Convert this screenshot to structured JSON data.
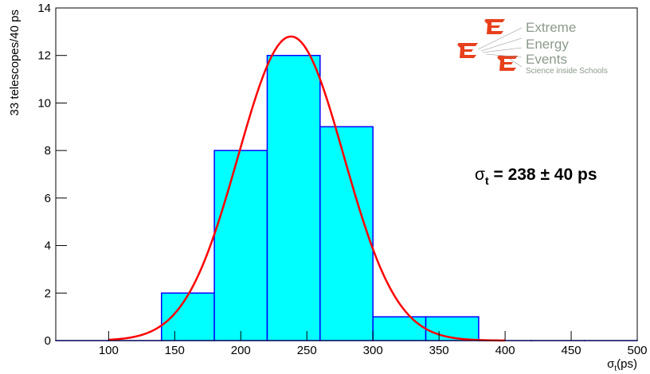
{
  "chart_data": {
    "type": "histogram",
    "bins": [
      60,
      100,
      140,
      180,
      220,
      260,
      300,
      340,
      380,
      420,
      460,
      500
    ],
    "values": [
      0,
      0,
      2,
      8,
      12,
      9,
      1,
      1,
      0,
      0,
      0
    ],
    "color": "#00ffff",
    "edge_color": "#0000ff",
    "xlim": [
      60,
      500
    ],
    "ylim": [
      0,
      14
    ],
    "xticks": [
      100,
      150,
      200,
      250,
      300,
      350,
      400,
      450,
      500
    ],
    "yticks": [
      0,
      2,
      4,
      6,
      8,
      10,
      12,
      14
    ],
    "xlabel": {
      "symbol": "σ",
      "subscript": "t",
      "text": "(ps)"
    },
    "ylabel": "33 telescopes/40 ps",
    "fit": {
      "type": "gaussian",
      "amplitude": 12.8,
      "mean": 238,
      "sigma": 40,
      "xrange": [
        100,
        400
      ],
      "color": "#ff0000"
    },
    "annotation": {
      "symbol": "σ",
      "subscript": "t",
      "text": " = 238 ± 40 ps"
    },
    "logo": [
      "Extreme",
      "Energy",
      "Events",
      "Science inside Schools"
    ]
  }
}
